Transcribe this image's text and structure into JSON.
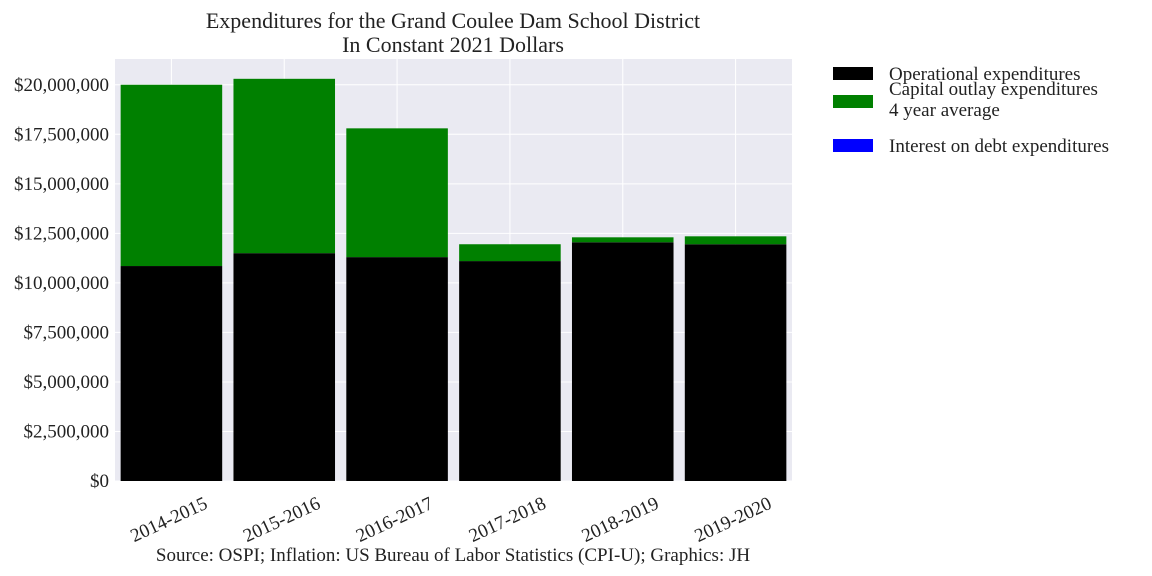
{
  "chart_data": {
    "type": "bar",
    "stacked": true,
    "title": "Expenditures for the Grand Coulee Dam School District",
    "subtitle": "In Constant 2021 Dollars",
    "xlabel": "",
    "ylabel": "",
    "caption": "Source: OSPI; Inflation: US Bureau of Labor Statistics (CPI-U); Graphics: JH",
    "categories": [
      "2014-2015",
      "2015-2016",
      "2016-2017",
      "2017-2018",
      "2018-2019",
      "2019-2020"
    ],
    "series": [
      {
        "name": "Operational expenditures",
        "color": "#000000",
        "values": [
          10850000,
          11500000,
          11300000,
          11100000,
          12050000,
          11950000
        ]
      },
      {
        "name": "Capital outlay expenditures\n4 year average",
        "color": "#008000",
        "values": [
          9150000,
          8800000,
          6500000,
          850000,
          250000,
          400000
        ]
      },
      {
        "name": "Interest on debt expenditures",
        "color": "#0000ff",
        "values": [
          0,
          0,
          0,
          0,
          0,
          0
        ]
      }
    ],
    "ylim": [
      0,
      21300000
    ],
    "yticks": [
      0,
      2500000,
      5000000,
      7500000,
      10000000,
      12500000,
      15000000,
      17500000,
      20000000
    ],
    "ytick_labels": [
      "$0",
      "$2,500,000",
      "$5,000,000",
      "$7,500,000",
      "$10,000,000",
      "$12,500,000",
      "$15,000,000",
      "$17,500,000",
      "$20,000,000"
    ],
    "grid": true,
    "legend_position": "outside-right",
    "background": "#eaeaf2"
  }
}
